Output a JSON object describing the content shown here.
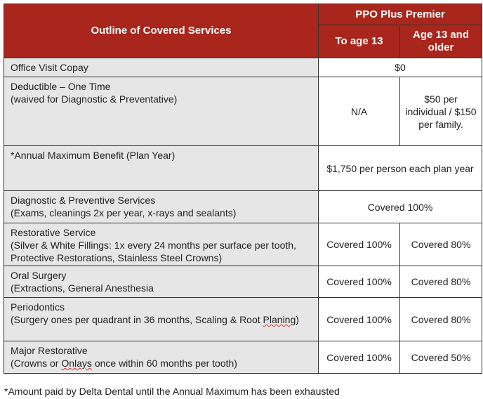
{
  "header": {
    "services_title": "Outline of Covered Services",
    "plan_name": "PPO Plus Premier",
    "col_child": "To age 13",
    "col_adult": "Age 13 and older"
  },
  "rows": [
    {
      "name": "Office Visit Copay",
      "detail": "",
      "combined": "$0"
    },
    {
      "name": "Deductible – One Time",
      "detail": "(waived for Diagnostic & Preventative)",
      "child": "N/A",
      "adult": "$50 per individual / $150 per family."
    },
    {
      "name": "*Annual Maximum Benefit (Plan Year)",
      "detail": "",
      "combined": "$1,750 per person each plan year"
    },
    {
      "name": "Diagnostic & Preventive Services",
      "detail": "(Exams, cleanings 2x per year, x-rays and sealants)",
      "combined": "Covered 100%"
    },
    {
      "name": "Restorative Service",
      "detail": "(Silver & White Fillings: 1x every 24 months per surface per tooth, Protective Restorations, Stainless Steel Crowns)",
      "child": "Covered 100%",
      "adult": "Covered 80%"
    },
    {
      "name": "Oral Surgery",
      "detail": "(Extractions, General Anesthesia",
      "child": "Covered 100%",
      "adult": "Covered 80%"
    },
    {
      "name": "Periodontics",
      "detail": "(Surgery ones per quadrant in 36 months, Scaling & Root",
      "detail2": "Planing",
      "detail3": ")",
      "child": "Covered 100%",
      "adult": "Covered 80%"
    },
    {
      "name": "Major Restorative",
      "detail": "(Crowns or ",
      "detail2": "Onlays",
      "detail3": " once within 60 months per tooth)",
      "child": "Covered 100%",
      "adult": "Covered 50%"
    }
  ],
  "footnote": "*Amount paid by Delta Dental until the Annual Maximum has been exhausted"
}
